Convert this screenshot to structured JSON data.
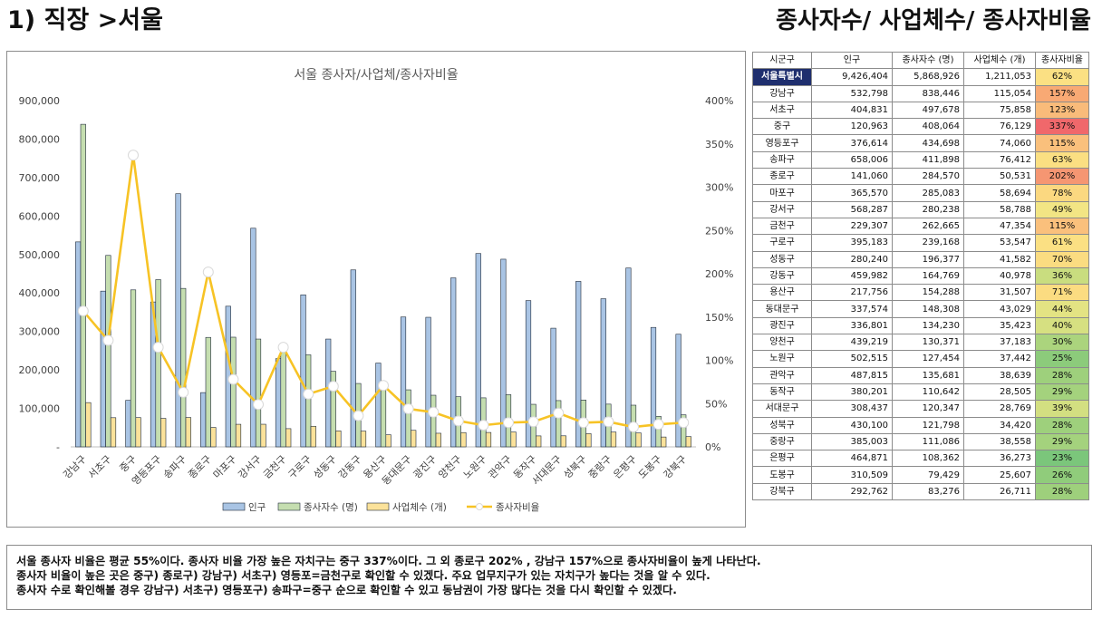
{
  "header": {
    "left_title": "1) 직장 >서울",
    "right_title": "종사자수/ 사업체수/ 종사자비율"
  },
  "chart_data": {
    "type": "bar",
    "title": "서울 종사자/사업체/종사자비율",
    "categories": [
      "강남구",
      "서초구",
      "중구",
      "영등포구",
      "송파구",
      "종로구",
      "마포구",
      "강서구",
      "금천구",
      "구로구",
      "성동구",
      "강동구",
      "용산구",
      "동대문구",
      "광진구",
      "양천구",
      "노원구",
      "관악구",
      "동작구",
      "서대문구",
      "성북구",
      "중랑구",
      "은평구",
      "도봉구",
      "강북구"
    ],
    "series": [
      {
        "name": "인구",
        "type": "bar",
        "axis": "left",
        "color": "#a9c4e4",
        "values": [
          532798,
          404831,
          120963,
          376614,
          658006,
          141060,
          365570,
          568287,
          229307,
          395183,
          280240,
          459982,
          217756,
          337574,
          336801,
          439219,
          502515,
          487815,
          380201,
          308437,
          430100,
          385003,
          464871,
          310509,
          292762
        ]
      },
      {
        "name": "종사자수 (명)",
        "type": "bar",
        "axis": "left",
        "color": "#c5deb0",
        "values": [
          838446,
          497678,
          408064,
          434698,
          411898,
          284570,
          285083,
          280238,
          262665,
          239168,
          196377,
          164769,
          154288,
          148308,
          134230,
          130371,
          127454,
          135681,
          110642,
          120347,
          121798,
          111086,
          108362,
          79429,
          83276
        ]
      },
      {
        "name": "사업체수 (개)",
        "type": "bar",
        "axis": "left",
        "color": "#fbe29a",
        "values": [
          115054,
          75858,
          76129,
          74060,
          76412,
          50531,
          58694,
          58788,
          47354,
          53547,
          41582,
          40978,
          31507,
          43029,
          35423,
          37183,
          37442,
          38639,
          28505,
          28769,
          34420,
          38558,
          36273,
          25607,
          26711
        ]
      },
      {
        "name": "종사자비율",
        "type": "line",
        "axis": "right",
        "color": "#f7c325",
        "values": [
          157,
          123,
          337,
          115,
          63,
          202,
          78,
          49,
          115,
          61,
          70,
          36,
          71,
          44,
          40,
          30,
          25,
          28,
          29,
          39,
          28,
          29,
          23,
          26,
          28
        ]
      }
    ],
    "y_left": {
      "min": 0,
      "max": 900000,
      "step": 100000,
      "ticks": [
        "-",
        "100,000",
        "200,000",
        "300,000",
        "400,000",
        "500,000",
        "600,000",
        "700,000",
        "800,000",
        "900,000"
      ]
    },
    "y_right": {
      "min": 0,
      "max": 400,
      "step": 50,
      "ticks": [
        "0%",
        "50%",
        "100%",
        "150%",
        "200%",
        "250%",
        "300%",
        "350%",
        "400%"
      ]
    },
    "legend": {
      "placement": "bottom",
      "items": [
        "인구",
        "종사자수 (명)",
        "사업체수 (개)",
        "종사자비율"
      ]
    },
    "grid": false
  },
  "table": {
    "headers": [
      "시군구",
      "인구",
      "종사자수 (명)",
      "사업체수 (개)",
      "종사자비율"
    ],
    "rows": [
      {
        "name": "서울특별시",
        "pop": "9,426,404",
        "workers": "5,868,926",
        "biz": "1,211,053",
        "ratio": "62%",
        "color": "#fbe083",
        "highlight": true
      },
      {
        "name": "강남구",
        "pop": "532,798",
        "workers": "838,446",
        "biz": "115,054",
        "ratio": "157%",
        "color": "#f8a974"
      },
      {
        "name": "서초구",
        "pop": "404,831",
        "workers": "497,678",
        "biz": "75,858",
        "ratio": "123%",
        "color": "#f9bb7a"
      },
      {
        "name": "중구",
        "pop": "120,963",
        "workers": "408,064",
        "biz": "76,129",
        "ratio": "337%",
        "color": "#f0686b"
      },
      {
        "name": "영등포구",
        "pop": "376,614",
        "workers": "434,698",
        "biz": "74,060",
        "ratio": "115%",
        "color": "#fac07c"
      },
      {
        "name": "송파구",
        "pop": "658,006",
        "workers": "411,898",
        "biz": "76,412",
        "ratio": "63%",
        "color": "#fbdf82"
      },
      {
        "name": "종로구",
        "pop": "141,060",
        "workers": "284,570",
        "biz": "50,531",
        "ratio": "202%",
        "color": "#f59672"
      },
      {
        "name": "마포구",
        "pop": "365,570",
        "workers": "285,083",
        "biz": "58,694",
        "ratio": "78%",
        "color": "#fbd880"
      },
      {
        "name": "강서구",
        "pop": "568,287",
        "workers": "280,238",
        "biz": "58,788",
        "ratio": "49%",
        "color": "#f2e584"
      },
      {
        "name": "금천구",
        "pop": "229,307",
        "workers": "262,665",
        "biz": "47,354",
        "ratio": "115%",
        "color": "#fac07c"
      },
      {
        "name": "구로구",
        "pop": "395,183",
        "workers": "239,168",
        "biz": "53,547",
        "ratio": "61%",
        "color": "#fbe083"
      },
      {
        "name": "성동구",
        "pop": "280,240",
        "workers": "196,377",
        "biz": "41,582",
        "ratio": "70%",
        "color": "#fbdc81"
      },
      {
        "name": "강동구",
        "pop": "459,982",
        "workers": "164,769",
        "biz": "40,978",
        "ratio": "36%",
        "color": "#c9dd7f"
      },
      {
        "name": "용산구",
        "pop": "217,756",
        "workers": "154,288",
        "biz": "31,507",
        "ratio": "71%",
        "color": "#fbdc81"
      },
      {
        "name": "동대문구",
        "pop": "337,574",
        "workers": "148,308",
        "biz": "43,029",
        "ratio": "44%",
        "color": "#e3e383"
      },
      {
        "name": "광진구",
        "pop": "336,801",
        "workers": "134,230",
        "biz": "35,423",
        "ratio": "40%",
        "color": "#d6e081"
      },
      {
        "name": "양천구",
        "pop": "439,219",
        "workers": "130,371",
        "biz": "37,183",
        "ratio": "30%",
        "color": "#abd47d"
      },
      {
        "name": "노원구",
        "pop": "502,515",
        "workers": "127,454",
        "biz": "37,442",
        "ratio": "25%",
        "color": "#8ccb7b"
      },
      {
        "name": "관악구",
        "pop": "487,815",
        "workers": "135,681",
        "biz": "38,639",
        "ratio": "28%",
        "color": "#9ed07c"
      },
      {
        "name": "동작구",
        "pop": "380,201",
        "workers": "110,642",
        "biz": "28,505",
        "ratio": "29%",
        "color": "#a4d27d"
      },
      {
        "name": "서대문구",
        "pop": "308,437",
        "workers": "120,347",
        "biz": "28,769",
        "ratio": "39%",
        "color": "#d3df81"
      },
      {
        "name": "성북구",
        "pop": "430,100",
        "workers": "121,798",
        "biz": "34,420",
        "ratio": "28%",
        "color": "#9ed07c"
      },
      {
        "name": "중랑구",
        "pop": "385,003",
        "workers": "111,086",
        "biz": "38,558",
        "ratio": "29%",
        "color": "#a4d27d"
      },
      {
        "name": "은평구",
        "pop": "464,871",
        "workers": "108,362",
        "biz": "36,273",
        "ratio": "23%",
        "color": "#7bc67b"
      },
      {
        "name": "도봉구",
        "pop": "310,509",
        "workers": "79,429",
        "biz": "25,607",
        "ratio": "26%",
        "color": "#90cc7b"
      },
      {
        "name": "강북구",
        "pop": "292,762",
        "workers": "83,276",
        "biz": "26,711",
        "ratio": "28%",
        "color": "#9ed07c"
      }
    ]
  },
  "notes": [
    "서울 종사자 비율은 평균 55%이다. 종사자 비율 가장 높은 자치구는 중구 337%이다. 그 외 종로구 202% , 강남구 157%으로 종사자비율이 높게 나타난다.",
    "종사자 비율이 높은 곳은 중구) 종로구) 강남구) 서초구) 영등포=금천구로 확인할 수 있겠다. 주요 업무지구가 있는 자치구가 높다는 것을 알 수 있다.",
    "종사자 수로 확인해볼 경우 강남구) 서초구) 영등포구) 송파구=중구 순으로 확인할 수 있고 동남권이 가장 많다는 것을 다시 확인할 수 있겠다."
  ]
}
